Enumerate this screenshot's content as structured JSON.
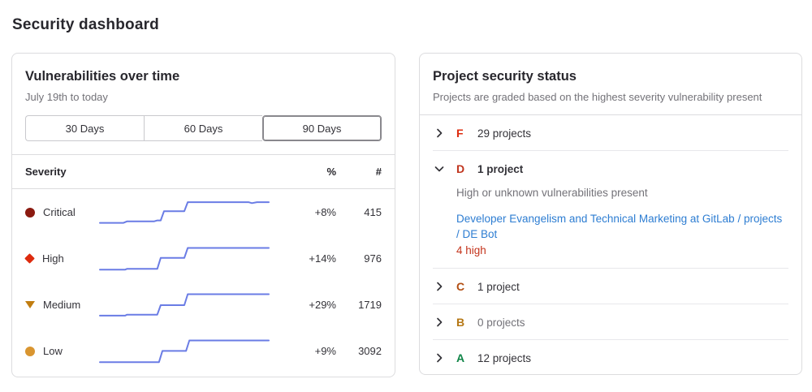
{
  "page": {
    "title": "Security dashboard"
  },
  "colors": {
    "sparkline": "#6a7ce5",
    "link": "#2d7dd2",
    "panel_border": "#dcdcde"
  },
  "vulnerabilities_panel": {
    "title": "Vulnerabilities over time",
    "subtitle": "July 19th to today",
    "selected_range": "90 Days",
    "range_buttons": [
      {
        "label": "30 Days"
      },
      {
        "label": "60 Days"
      },
      {
        "label": "90 Days"
      }
    ],
    "table": {
      "severity_header": "Severity",
      "percent_header": "%",
      "count_header": "#",
      "rows": [
        {
          "severity": "Critical",
          "icon_shape": "circle",
          "icon_color": "#8b1a10",
          "percent": "+8%",
          "count": "415"
        },
        {
          "severity": "High",
          "icon_shape": "diamond",
          "icon_color": "#dd2b0e",
          "percent": "+14%",
          "count": "976"
        },
        {
          "severity": "Medium",
          "icon_shape": "triangle-down",
          "icon_color": "#c17d10",
          "percent": "+29%",
          "count": "1719"
        },
        {
          "severity": "Low",
          "icon_shape": "circle",
          "icon_color": "#d99530",
          "percent": "+9%",
          "count": "3092"
        }
      ]
    }
  },
  "chart_data": {
    "type": "line",
    "title": "Vulnerabilities over time",
    "period": "July 19th to today",
    "range": "90 Days",
    "line_color": "#6a7ce5",
    "series": [
      {
        "name": "Critical",
        "trend": "+8%",
        "latest": 415,
        "points": [
          [
            0,
            8
          ],
          [
            14,
            8
          ],
          [
            16,
            14
          ],
          [
            32,
            14
          ],
          [
            34,
            18
          ],
          [
            36,
            18
          ],
          [
            38,
            56
          ],
          [
            50,
            56
          ],
          [
            52,
            93
          ],
          [
            88,
            93
          ],
          [
            90,
            89
          ],
          [
            93,
            93
          ],
          [
            100,
            93
          ]
        ]
      },
      {
        "name": "High",
        "trend": "+14%",
        "latest": 976,
        "points": [
          [
            0,
            6
          ],
          [
            15,
            6
          ],
          [
            16,
            9
          ],
          [
            34,
            9
          ],
          [
            36,
            54
          ],
          [
            50,
            54
          ],
          [
            52,
            95
          ],
          [
            100,
            95
          ]
        ]
      },
      {
        "name": "Medium",
        "trend": "+29%",
        "latest": 1719,
        "points": [
          [
            0,
            7
          ],
          [
            15,
            7
          ],
          [
            16,
            11
          ],
          [
            34,
            11
          ],
          [
            36,
            50
          ],
          [
            50,
            50
          ],
          [
            52,
            95
          ],
          [
            100,
            95
          ]
        ]
      },
      {
        "name": "Low",
        "trend": "+9%",
        "latest": 3092,
        "points": [
          [
            0,
            6
          ],
          [
            35,
            6
          ],
          [
            37,
            52
          ],
          [
            51,
            52
          ],
          [
            53,
            95
          ],
          [
            100,
            95
          ]
        ]
      }
    ]
  },
  "project_status_panel": {
    "title": "Project security status",
    "subtitle": "Projects are graded based on the highest severity vulnerability present",
    "grades": [
      {
        "letter": "F",
        "color": "#dd2b0e",
        "count_label": "29 projects",
        "expanded": false,
        "muted": false
      },
      {
        "letter": "D",
        "color": "#c0341d",
        "count_label": "1 project",
        "expanded": true,
        "muted": false,
        "description": "High or unknown vulnerabilities present",
        "project_link": "Developer Evangelism and Technical Marketing at GitLab / projects / DE Bot",
        "vuln_summary": "4 high"
      },
      {
        "letter": "C",
        "color": "#b24e12",
        "count_label": "1 project",
        "expanded": false,
        "muted": false
      },
      {
        "letter": "B",
        "color": "#b57714",
        "count_label": "0 projects",
        "expanded": false,
        "muted": true
      },
      {
        "letter": "A",
        "color": "#108548",
        "count_label": "12 projects",
        "expanded": false,
        "muted": false
      }
    ]
  }
}
